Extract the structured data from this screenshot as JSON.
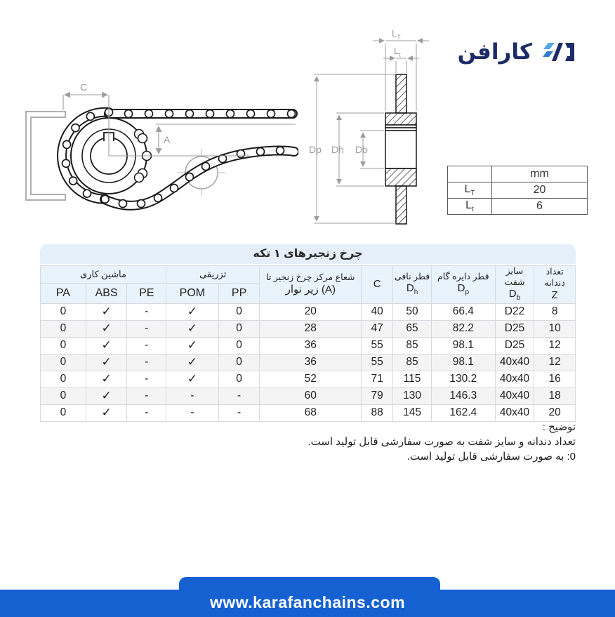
{
  "logo": {
    "text": "کارافن"
  },
  "spec_table": {
    "unit": "mm",
    "rows": [
      {
        "sym": "L",
        "sub": "T",
        "value": "20"
      },
      {
        "sym": "L",
        "sub": "t",
        "value": "6"
      }
    ]
  },
  "drawing": {
    "dim_c": "C",
    "dim_a": "A",
    "lt_sym": "L",
    "lt_sub": "T",
    "ltt_sym": "L",
    "ltt_sub": "t",
    "dp": "Dp",
    "dh": "Dh",
    "db": "Db"
  },
  "main_table": {
    "title": "چرخ زنجیرهای ۱ تکه",
    "groups": [
      {
        "label": "ماشین کاری",
        "cols": [
          "PA",
          "ABS",
          "PE"
        ]
      },
      {
        "label": "تزریقی",
        "cols": [
          "POM",
          "PP"
        ]
      }
    ],
    "value_headers": [
      {
        "line1": "شعاع مرکز چرخ زنجیر تا",
        "line2": "زیر نوار (A)"
      },
      {
        "sym": "C"
      },
      {
        "line1": "قطر نافی",
        "sym": "D",
        "sub": "h"
      },
      {
        "line1": "قطر دایره گام",
        "sym": "D",
        "sub": "p"
      },
      {
        "line1": "سایز شفت",
        "sym": "D",
        "sub": "b"
      },
      {
        "line1": "تعداد دندانه",
        "sym": "Z"
      }
    ],
    "rows": [
      [
        "0",
        "✓",
        "-",
        "✓",
        "0",
        "20",
        "40",
        "50",
        "66.4",
        "D22",
        "8"
      ],
      [
        "0",
        "✓",
        "-",
        "✓",
        "0",
        "28",
        "47",
        "65",
        "82.2",
        "D25",
        "10"
      ],
      [
        "0",
        "✓",
        "-",
        "✓",
        "0",
        "36",
        "55",
        "85",
        "98.1",
        "D25",
        "12"
      ],
      [
        "0",
        "✓",
        "-",
        "✓",
        "0",
        "36",
        "55",
        "85",
        "98.1",
        "40x40",
        "12"
      ],
      [
        "0",
        "✓",
        "-",
        "✓",
        "0",
        "52",
        "71",
        "115",
        "130.2",
        "40x40",
        "16"
      ],
      [
        "0",
        "✓",
        "-",
        "-",
        "-",
        "60",
        "79",
        "130",
        "146.3",
        "40x40",
        "18"
      ],
      [
        "0",
        "✓",
        "-",
        "-",
        "-",
        "68",
        "88",
        "145",
        "162.4",
        "40x40",
        "20"
      ]
    ]
  },
  "notes": {
    "title": "توضیح :",
    "lines": [
      "تعداد دندانه و سایز شفت به صورت سفارشی قابل تولید است.",
      "0: به صورت سفارشی قابل تولید است."
    ]
  },
  "footer": {
    "url": "www.karafanchains.com"
  },
  "colors": {
    "accent_blue": "#1561d2",
    "header_blue": "#e9f3fb",
    "logo_navy": "#1d2b66"
  }
}
